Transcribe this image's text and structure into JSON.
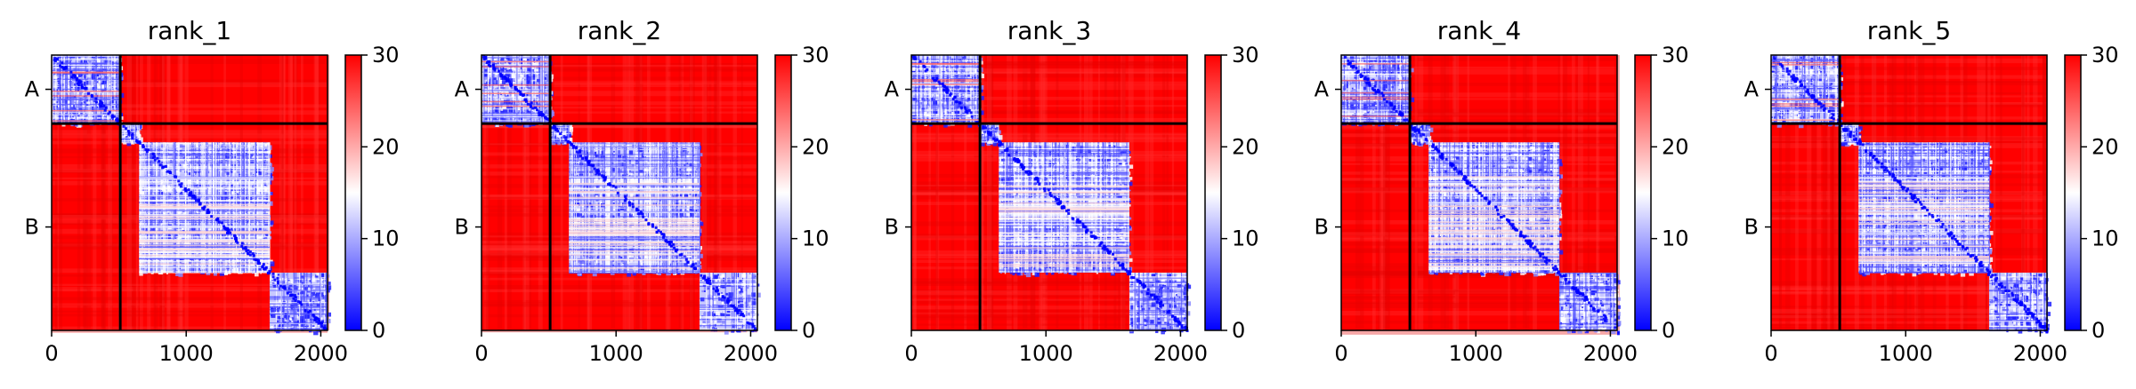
{
  "figure": {
    "type": "heatmap-grid",
    "colormap": "bwr",
    "colors": {
      "low": "#0000ff",
      "mid": "#ffffff",
      "high": "#ff0000"
    }
  },
  "chart_data": [
    {
      "type": "heatmap",
      "title": "rank_1",
      "xlim": [
        0,
        2050
      ],
      "x_ticks": [
        "0",
        "1000",
        "2000"
      ],
      "y_ticks": [
        "A",
        "B"
      ],
      "chain_boundary": 510,
      "vrange": [
        0,
        30
      ],
      "colorbar_ticks": [
        "0",
        "10",
        "20",
        "30"
      ],
      "blocks": {
        "A": [
          0,
          510
        ],
        "B": [
          510,
          2050
        ]
      },
      "low_error_regions": [
        [
          0,
          510
        ],
        [
          510,
          650
        ],
        [
          650,
          1620
        ],
        [
          1620,
          2050
        ]
      ]
    },
    {
      "type": "heatmap",
      "title": "rank_2",
      "xlim": [
        0,
        2050
      ],
      "x_ticks": [
        "0",
        "1000",
        "2000"
      ],
      "y_ticks": [
        "A",
        "B"
      ],
      "chain_boundary": 510,
      "vrange": [
        0,
        30
      ],
      "colorbar_ticks": [
        "0",
        "10",
        "20",
        "30"
      ],
      "blocks": {
        "A": [
          0,
          510
        ],
        "B": [
          510,
          2050
        ]
      },
      "low_error_regions": [
        [
          0,
          510
        ],
        [
          510,
          650
        ],
        [
          650,
          1620
        ],
        [
          1620,
          2050
        ]
      ]
    },
    {
      "type": "heatmap",
      "title": "rank_3",
      "xlim": [
        0,
        2050
      ],
      "x_ticks": [
        "0",
        "1000",
        "2000"
      ],
      "y_ticks": [
        "A",
        "B"
      ],
      "chain_boundary": 510,
      "vrange": [
        0,
        30
      ],
      "colorbar_ticks": [
        "0",
        "10",
        "20",
        "30"
      ],
      "blocks": {
        "A": [
          0,
          510
        ],
        "B": [
          510,
          2050
        ]
      },
      "low_error_regions": [
        [
          0,
          510
        ],
        [
          510,
          650
        ],
        [
          650,
          1620
        ],
        [
          1620,
          2050
        ]
      ]
    },
    {
      "type": "heatmap",
      "title": "rank_4",
      "xlim": [
        0,
        2050
      ],
      "x_ticks": [
        "0",
        "1000",
        "2000"
      ],
      "y_ticks": [
        "A",
        "B"
      ],
      "chain_boundary": 510,
      "vrange": [
        0,
        30
      ],
      "colorbar_ticks": [
        "0",
        "10",
        "20",
        "30"
      ],
      "blocks": {
        "A": [
          0,
          510
        ],
        "B": [
          510,
          2050
        ]
      },
      "low_error_regions": [
        [
          0,
          510
        ],
        [
          510,
          650
        ],
        [
          650,
          1620
        ],
        [
          1620,
          2050
        ]
      ]
    },
    {
      "type": "heatmap",
      "title": "rank_5",
      "xlim": [
        0,
        2050
      ],
      "x_ticks": [
        "0",
        "1000",
        "2000"
      ],
      "y_ticks": [
        "A",
        "B"
      ],
      "chain_boundary": 510,
      "vrange": [
        0,
        30
      ],
      "colorbar_ticks": [
        "0",
        "10",
        "20",
        "30"
      ],
      "blocks": {
        "A": [
          0,
          510
        ],
        "B": [
          510,
          2050
        ]
      },
      "low_error_regions": [
        [
          0,
          510
        ],
        [
          510,
          650
        ],
        [
          650,
          1620
        ],
        [
          1620,
          2050
        ]
      ]
    }
  ]
}
